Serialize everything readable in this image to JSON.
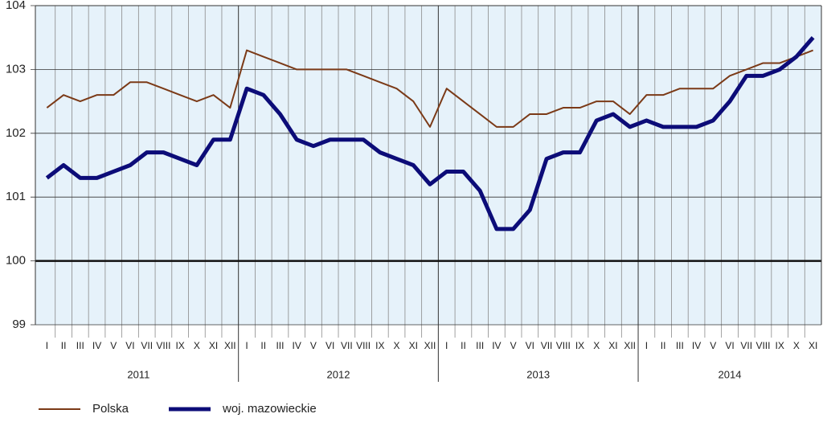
{
  "chart_data": {
    "type": "line",
    "categories": [
      "I",
      "II",
      "III",
      "IV",
      "V",
      "VI",
      "VII",
      "VIII",
      "IX",
      "X",
      "XI",
      "XII",
      "I",
      "II",
      "III",
      "IV",
      "V",
      "VI",
      "VII",
      "VIII",
      "IX",
      "X",
      "XI",
      "XII",
      "I",
      "II",
      "III",
      "IV",
      "V",
      "VI",
      "VII",
      "VIII",
      "IX",
      "X",
      "XI",
      "XII",
      "I",
      "II",
      "III",
      "IV",
      "V",
      "VI",
      "VII",
      "VIII",
      "IX",
      "X",
      "XI"
    ],
    "groups": [
      "2011",
      "2012",
      "2013",
      "2014"
    ],
    "series": [
      {
        "name": "Polska",
        "color": "#7b3a17",
        "values": [
          102.4,
          102.6,
          102.5,
          102.6,
          102.6,
          102.8,
          102.8,
          102.7,
          102.6,
          102.5,
          102.6,
          102.4,
          103.3,
          103.2,
          103.1,
          103.0,
          103.0,
          103.0,
          103.0,
          102.9,
          102.8,
          102.7,
          102.5,
          102.1,
          102.7,
          102.5,
          102.3,
          102.1,
          102.1,
          102.3,
          102.3,
          102.4,
          102.4,
          102.5,
          102.5,
          102.3,
          102.6,
          102.6,
          102.7,
          102.7,
          102.7,
          102.9,
          103.0,
          103.1,
          103.1,
          103.2,
          103.3
        ]
      },
      {
        "name": "woj. mazowieckie",
        "color": "#0c0c78",
        "values": [
          101.3,
          101.5,
          101.3,
          101.3,
          101.4,
          101.5,
          101.7,
          101.7,
          101.6,
          101.5,
          101.9,
          101.9,
          102.7,
          102.6,
          102.3,
          101.9,
          101.8,
          101.9,
          101.9,
          101.9,
          101.7,
          101.6,
          101.5,
          101.2,
          101.4,
          101.4,
          101.1,
          100.5,
          100.5,
          100.8,
          101.6,
          101.7,
          101.7,
          102.2,
          102.3,
          102.1,
          102.2,
          102.1,
          102.1,
          102.1,
          102.2,
          102.5,
          102.9,
          102.9,
          103.0,
          103.2,
          103.5
        ]
      }
    ],
    "ylim": [
      99,
      104
    ],
    "yticks": [
      99,
      100,
      101,
      102,
      103,
      104
    ],
    "reference_line": 100,
    "grid": true
  }
}
